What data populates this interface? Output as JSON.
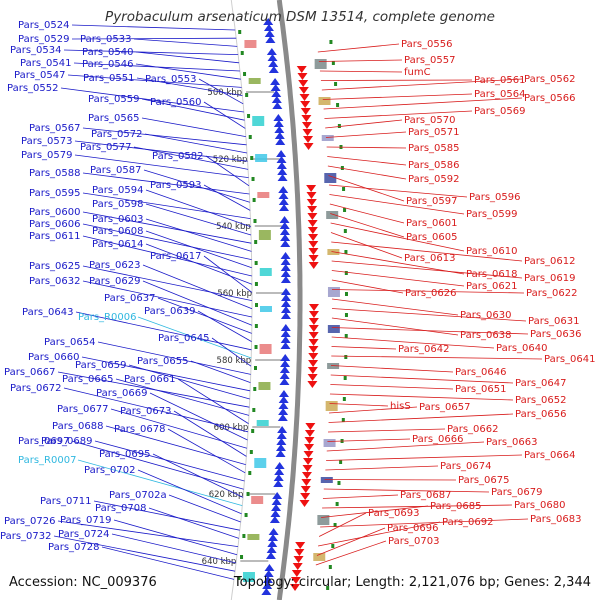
{
  "title": "Pyrobaculum arsenaticum DSM 13514, complete genome",
  "accession_text": "Accession: NC_009376",
  "summary_text": "Topology: circular; Length: 2,121,076 bp; Genes: 2,344",
  "colors": {
    "left_labels": "#1a1ac8",
    "left_labels_rna": "#30b8e0",
    "right_labels": "#d81c1c",
    "backbone": "#8a8a8a",
    "forward_arrow": "#2233dd",
    "reverse_arrow": "#ee1111",
    "cds_dash": "#228822"
  },
  "scale_ticks": [
    "500 kbp",
    "520 kbp",
    "540 kbp",
    "560 kbp",
    "580 kbp",
    "600 kbp",
    "620 kbp",
    "640 kbp"
  ],
  "left_genes": [
    "Pars_0524",
    "Pars_0529",
    "Pars_0533",
    "Pars_0534",
    "Pars_0540",
    "Pars_0541",
    "Pars_0546",
    "Pars_0547",
    "Pars_0551",
    "Pars_0553",
    "Pars_0552",
    "Pars_0559",
    "Pars_0560",
    "Pars_0565",
    "Pars_0567",
    "Pars_0572",
    "Pars_0573",
    "Pars_0577",
    "Pars_0579",
    "Pars_0582",
    "Pars_0588",
    "Pars_0587",
    "Pars_0593",
    "Pars_0595",
    "Pars_0594",
    "Pars_0598",
    "Pars_0600",
    "Pars_0603",
    "Pars_0606",
    "Pars_0608",
    "Pars_0611",
    "Pars_0614",
    "Pars_0617",
    "Pars_0625",
    "Pars_0623",
    "Pars_0632",
    "Pars_0629",
    "Pars_0637",
    "Pars_0639",
    "Pars_0643",
    "Pars_R0006",
    "Pars_0645",
    "Pars_0654",
    "Pars_0655",
    "Pars_0660",
    "Pars_0659",
    "Pars_0667",
    "Pars_0665",
    "Pars_0661",
    "Pars_0672",
    "Pars_0669",
    "Pars_0677",
    "Pars_0673",
    "Pars_0688",
    "Pars_0678",
    "Pars_0689",
    "Pars_0697",
    "Pars_0695",
    "Pars_R0007",
    "Pars_0702",
    "Pars_0702a",
    "Pars_0711",
    "Pars_0708",
    "Pars_0726",
    "Pars_0719",
    "Pars_0724",
    "Pars_0732",
    "Pars_0728"
  ],
  "right_genes": [
    "Pars_0556",
    "Pars_0557",
    "fumC",
    "Pars_0561",
    "Pars_0562",
    "Pars_0564",
    "Pars_0566",
    "Pars_0569",
    "Pars_0570",
    "Pars_0571",
    "Pars_0585",
    "Pars_0586",
    "Pars_0592",
    "Pars_0597",
    "Pars_0596",
    "Pars_0599",
    "Pars_0601",
    "Pars_0605",
    "Pars_0610",
    "Pars_0613",
    "Pars_0612",
    "Pars_0618",
    "Pars_0619",
    "Pars_0621",
    "Pars_0626",
    "Pars_0622",
    "Pars_0630",
    "Pars_0631",
    "Pars_0638",
    "Pars_0636",
    "Pars_0640",
    "Pars_0642",
    "Pars_0641",
    "Pars_0646",
    "Pars_0647",
    "Pars_0651",
    "Pars_0652",
    "hisS",
    "Pars_0657",
    "Pars_0656",
    "Pars_0662",
    "Pars_0666",
    "Pars_0663",
    "Pars_0664",
    "Pars_0674",
    "Pars_0675",
    "Pars_0679",
    "Pars_0687",
    "Pars_0680",
    "Pars_0685",
    "Pars_0683",
    "Pars_0693",
    "Pars_0692",
    "Pars_0696",
    "Pars_0703"
  ]
}
